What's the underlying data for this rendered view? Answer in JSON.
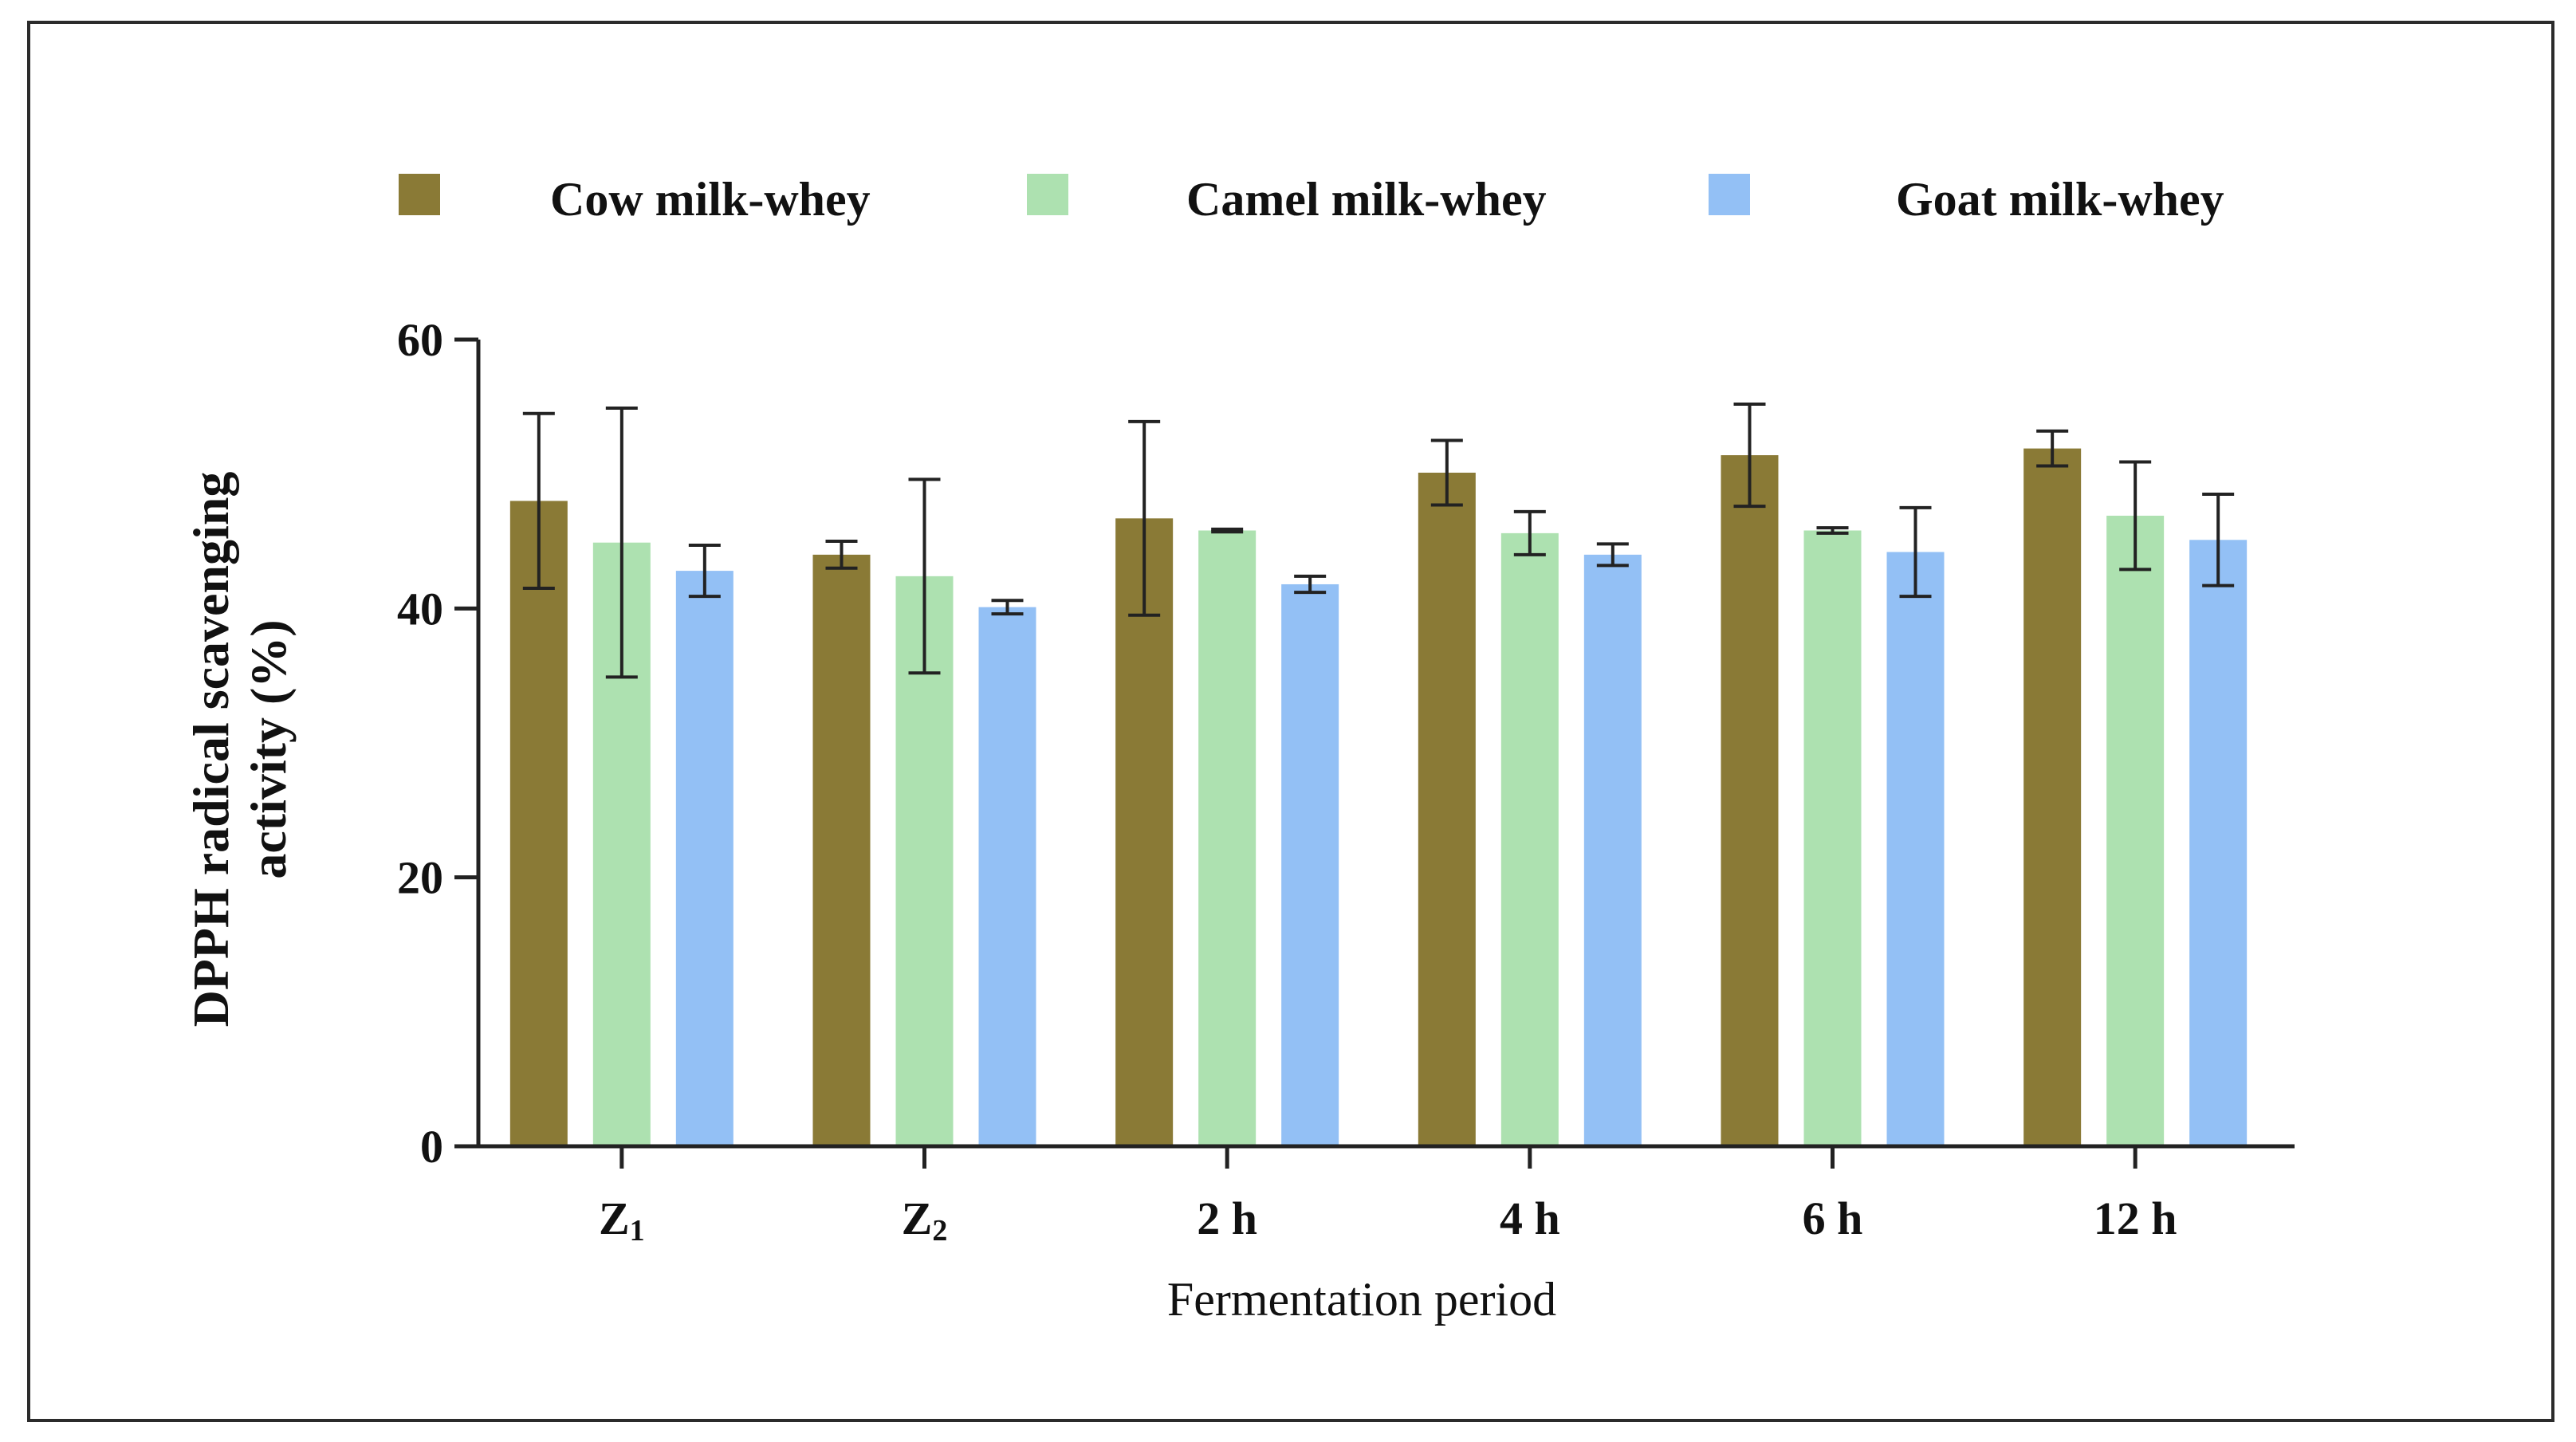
{
  "chart_data": {
    "type": "bar",
    "title": "",
    "xlabel": "Fermentation period",
    "ylabel_line1": "DPPH radical scavenging",
    "ylabel_line2": "activity (%)",
    "ylim": [
      0,
      60
    ],
    "yticks": [
      0,
      20,
      40,
      60
    ],
    "categories": [
      {
        "base": "Z",
        "sub": "1"
      },
      {
        "base": "Z",
        "sub": "2"
      },
      {
        "base": "2 h",
        "sub": ""
      },
      {
        "base": "4 h",
        "sub": ""
      },
      {
        "base": "6 h",
        "sub": ""
      },
      {
        "base": "12 h",
        "sub": ""
      }
    ],
    "series": [
      {
        "name": "Cow milk-whey",
        "color": "#8a7a36",
        "values": [
          48.0,
          44.0,
          46.7,
          50.1,
          51.4,
          51.9
        ],
        "errors": [
          6.5,
          1.0,
          7.2,
          2.4,
          3.8,
          1.3
        ]
      },
      {
        "name": "Camel milk-whey",
        "color": "#ade1b0",
        "values": [
          44.9,
          42.4,
          45.8,
          45.6,
          45.8,
          46.9
        ],
        "errors": [
          10.0,
          7.2,
          0.1,
          1.6,
          0.2,
          4.0
        ]
      },
      {
        "name": "Goat milk-whey",
        "color": "#93c0f5",
        "values": [
          42.8,
          40.1,
          41.8,
          44.0,
          44.2,
          45.1
        ],
        "errors": [
          1.9,
          0.5,
          0.6,
          0.8,
          3.3,
          3.4
        ]
      }
    ],
    "legend_position": "top"
  }
}
